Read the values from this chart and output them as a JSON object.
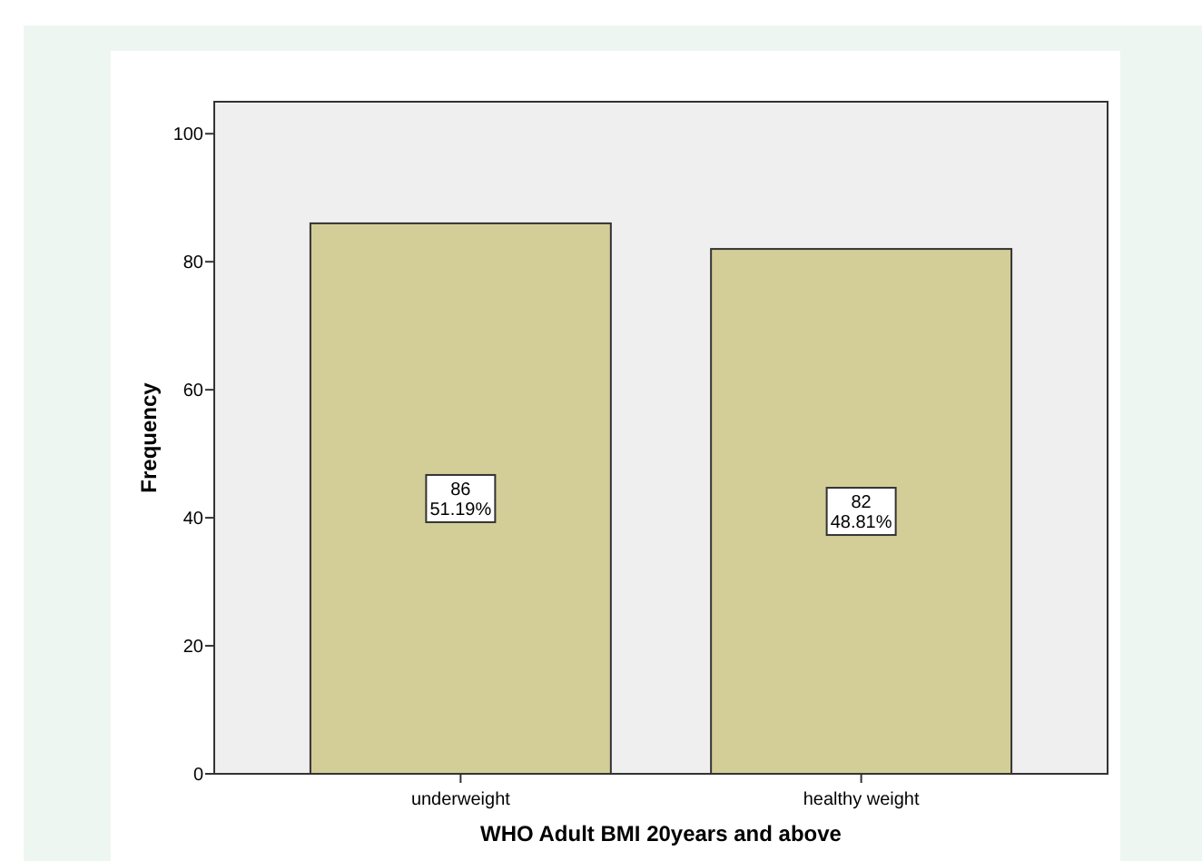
{
  "chart_data": {
    "type": "bar",
    "xlabel": "WHO Adult BMI 20years and above",
    "ylabel": "Frequency",
    "categories": [
      "underweight",
      "healthy weight"
    ],
    "values": [
      86,
      82
    ],
    "color": "#d3ce97",
    "value_labels": [
      "86\n51.19%",
      "82\n48.81%"
    ],
    "ylim": [
      0,
      105
    ],
    "yticks": [
      0,
      20,
      40,
      60,
      80,
      100
    ],
    "grid": false
  }
}
